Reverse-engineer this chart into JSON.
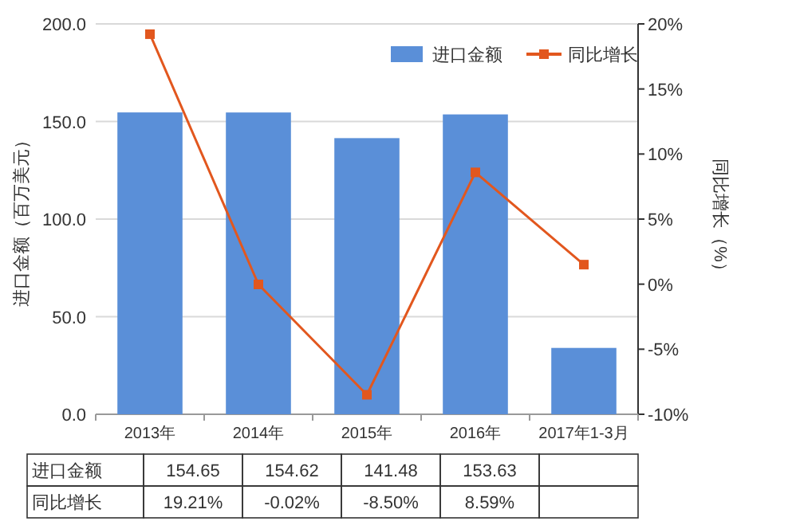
{
  "chart_data": {
    "type": "bar",
    "categories": [
      "2013年",
      "2014年",
      "2015年",
      "2016年",
      "2017年1-3月"
    ],
    "series": [
      {
        "name": "进口金额",
        "color": "#5a8fd8",
        "values": [
          154.65,
          154.62,
          141.48,
          153.63,
          34
        ],
        "value_labels": [
          "154.65",
          "154.62",
          "141.48",
          "153.63",
          null
        ]
      },
      {
        "name": "同比增长",
        "type": "line",
        "axis": "y2",
        "color": "#e2571e",
        "values": [
          19.21,
          -0.02,
          -8.5,
          8.59,
          1.5
        ],
        "value_labels": [
          "19.21%",
          "-0.02%",
          "-8.50%",
          "8.59%",
          null
        ]
      }
    ],
    "ylim": [
      0,
      200
    ],
    "yticks": [
      {
        "value": 0,
        "label": "0.0"
      },
      {
        "value": 50,
        "label": "50.0"
      },
      {
        "value": 100,
        "label": "100.0"
      },
      {
        "value": 150,
        "label": "150.0"
      },
      {
        "value": 200,
        "label": "200.0"
      }
    ],
    "y2lim": [
      -10,
      20
    ],
    "y2ticks": [
      {
        "value": -10,
        "label": "-10%"
      },
      {
        "value": -5,
        "label": "-5%"
      },
      {
        "value": 0,
        "label": "0%"
      },
      {
        "value": 5,
        "label": "5%"
      },
      {
        "value": 10,
        "label": "10%"
      },
      {
        "value": 15,
        "label": "15%"
      },
      {
        "value": 20,
        "label": "20%"
      }
    ],
    "ylabel": "进口金额（百万美元）",
    "y2label": "同比增长（%）",
    "legend": "top right",
    "grid": "y",
    "marker": "square"
  }
}
